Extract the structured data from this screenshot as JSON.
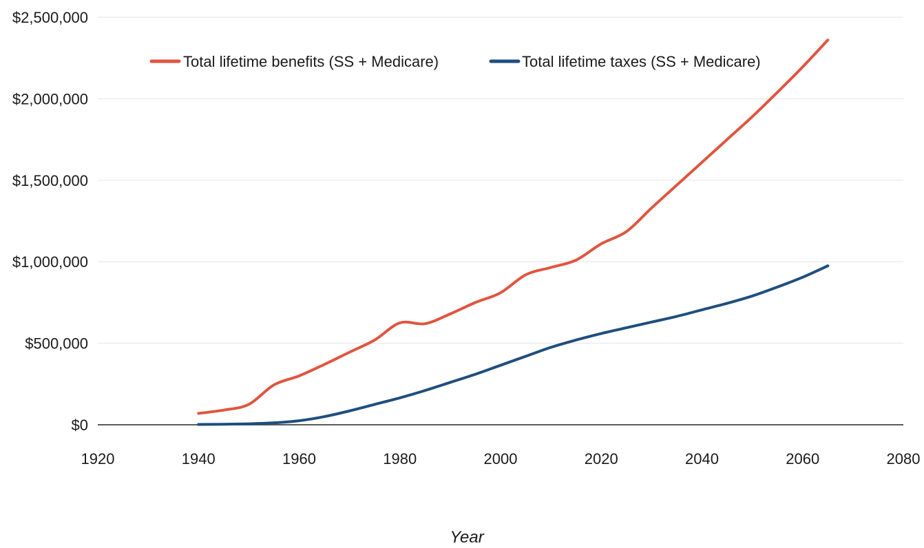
{
  "chart_data": {
    "type": "line",
    "xlabel": "Year",
    "ylabel": "",
    "xlim": [
      1920,
      2080
    ],
    "ylim": [
      0,
      2500000
    ],
    "x_ticks": [
      1920,
      1940,
      1960,
      1980,
      2000,
      2020,
      2040,
      2060,
      2080
    ],
    "y_ticks": [
      0,
      500000,
      1000000,
      1500000,
      2000000,
      2500000
    ],
    "y_tick_labels": [
      "$0",
      "$500,000",
      "$1,000,000",
      "$1,500,000",
      "$2,000,000",
      "$2,500,000"
    ],
    "grid": true,
    "legend_position": "top",
    "series": [
      {
        "name": "Total lifetime benefits (SS + Medicare)",
        "color": "#e0553f",
        "x": [
          1940,
          1945,
          1950,
          1955,
          1960,
          1965,
          1970,
          1975,
          1980,
          1985,
          1990,
          1995,
          2000,
          2005,
          2010,
          2015,
          2020,
          2025,
          2030,
          2035,
          2040,
          2045,
          2050,
          2055,
          2060,
          2065
        ],
        "y": [
          70000,
          90000,
          125000,
          245000,
          300000,
          370000,
          445000,
          520000,
          625000,
          620000,
          680000,
          750000,
          810000,
          920000,
          965000,
          1010000,
          1110000,
          1185000,
          1330000,
          1470000,
          1610000,
          1750000,
          1890000,
          2040000,
          2195000,
          2360000
        ]
      },
      {
        "name": "Total lifetime taxes (SS + Medicare)",
        "color": "#1f4e7e",
        "x": [
          1940,
          1945,
          1950,
          1955,
          1960,
          1965,
          1970,
          1975,
          1980,
          1985,
          1990,
          1995,
          2000,
          2005,
          2010,
          2015,
          2020,
          2025,
          2030,
          2035,
          2040,
          2045,
          2050,
          2055,
          2060,
          2065
        ],
        "y": [
          2000,
          3000,
          6000,
          12000,
          25000,
          50000,
          85000,
          125000,
          165000,
          210000,
          260000,
          310000,
          365000,
          420000,
          475000,
          520000,
          560000,
          595000,
          630000,
          665000,
          705000,
          745000,
          790000,
          845000,
          905000,
          975000
        ]
      }
    ]
  }
}
